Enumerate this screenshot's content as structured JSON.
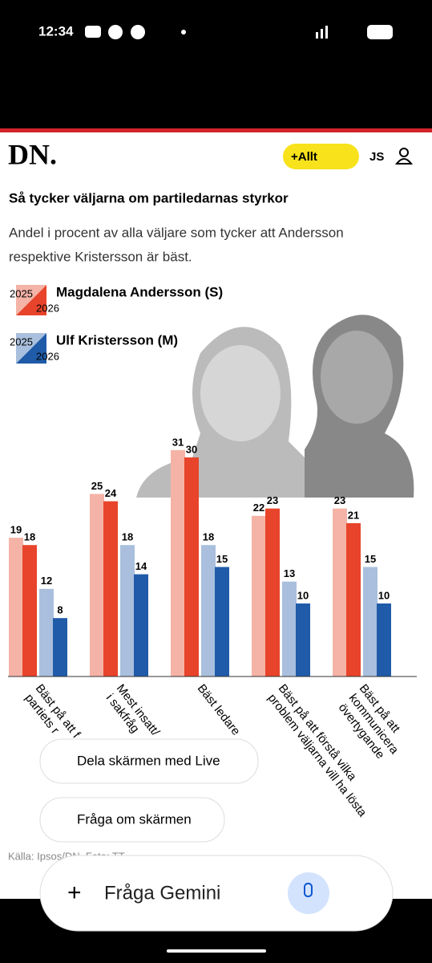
{
  "status_bar": {
    "time": "12:34"
  },
  "header": {
    "logo": "DN.",
    "menu": "+Allt",
    "user": "JS"
  },
  "chart_data": {
    "type": "bar",
    "title": "Så tycker väljarna om partiledarnas styrkor",
    "subtitle": [
      "Andel i procent av alla väljare som tycker att Andersson",
      "respektive Kristersson är bäst."
    ],
    "legend_labels": [
      "Magdalena Andersson (S)",
      "Ulf Kristersson (M)"
    ],
    "categories": [
      [
        "Bäst på att f",
        "partiets r"
      ],
      [
        "Mest insatt/",
        "i sakfråg"
      ],
      [
        "Bäst ledare"
      ],
      [
        "Bäst på att förstå vilka",
        "problem väljarna vill ha lösta"
      ],
      [
        "Bäst på att",
        "kommunicera",
        "övertygande"
      ]
    ],
    "series": [
      {
        "name": "2025",
        "color": "#f4b3a6",
        "values": [
          19,
          25,
          31,
          22,
          23
        ]
      },
      {
        "name": "2026",
        "color": "#e8442b",
        "values": [
          18,
          24,
          30,
          23,
          21
        ]
      },
      {
        "name": "2025",
        "color": "#a9bfdd",
        "values": [
          12,
          18,
          18,
          13,
          15
        ]
      },
      {
        "name": "2026",
        "color": "#1f5ba8",
        "values": [
          8,
          14,
          15,
          10,
          10
        ]
      }
    ],
    "source": "Källa: Ipsos/DN. Foto: TT"
  },
  "overlay": {
    "share": "Dela skärmen med Live",
    "ask_screen": "Fråga om skärmen",
    "ask": "Fråga Gemini"
  }
}
